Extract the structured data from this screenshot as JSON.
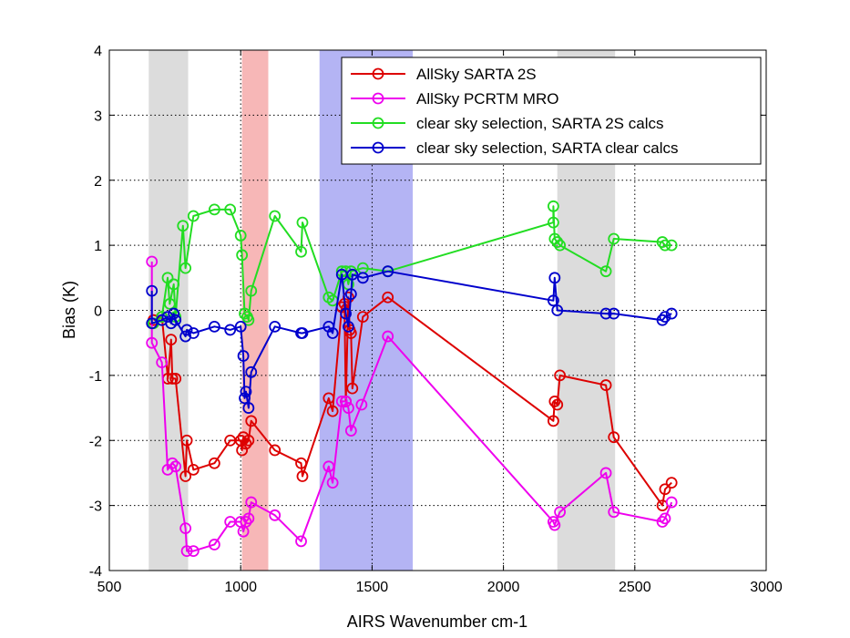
{
  "chart_data": {
    "type": "line",
    "title": "",
    "xlabel": "AIRS Wavenumber cm-1",
    "ylabel": "Bias (K)",
    "xlim": [
      500,
      3000
    ],
    "ylim": [
      -4,
      4
    ],
    "xticks": [
      500,
      1000,
      1500,
      2000,
      2500,
      3000
    ],
    "yticks": [
      -4,
      -3,
      -2,
      -1,
      0,
      1,
      2,
      3,
      4
    ],
    "grid": true,
    "grid_style": "dotted",
    "legend_position": "top-right",
    "bands": [
      {
        "x0": 650,
        "x1": 800,
        "color": "#dcdcdc"
      },
      {
        "x0": 1005,
        "x1": 1105,
        "color": "#f7b7b7"
      },
      {
        "x0": 1300,
        "x1": 1655,
        "color": "#b4b4f4"
      },
      {
        "x0": 2205,
        "x1": 2425,
        "color": "#dcdcdc"
      }
    ],
    "series": [
      {
        "name": "AllSky SARTA 2S",
        "color": "#dd0000",
        "points": [
          [
            668,
            -0.15
          ],
          [
            700,
            -0.1
          ],
          [
            723,
            -1.05
          ],
          [
            735,
            -0.45
          ],
          [
            740,
            -1.05
          ],
          [
            752,
            -1.05
          ],
          [
            790,
            -2.55
          ],
          [
            795,
            -2.0
          ],
          [
            820,
            -2.45
          ],
          [
            900,
            -2.35
          ],
          [
            960,
            -2.0
          ],
          [
            1000,
            -2.0
          ],
          [
            1005,
            -2.15
          ],
          [
            1010,
            -1.95
          ],
          [
            1020,
            -2.05
          ],
          [
            1030,
            -2.0
          ],
          [
            1040,
            -1.7
          ],
          [
            1130,
            -2.15
          ],
          [
            1230,
            -2.35
          ],
          [
            1235,
            -2.55
          ],
          [
            1335,
            -1.35
          ],
          [
            1350,
            -1.55
          ],
          [
            1385,
            0.05
          ],
          [
            1395,
            0.1
          ],
          [
            1400,
            -1.4
          ],
          [
            1410,
            0.2
          ],
          [
            1415,
            -0.3
          ],
          [
            1420,
            -0.35
          ],
          [
            1425,
            -1.2
          ],
          [
            1465,
            -0.1
          ],
          [
            1560,
            0.2
          ],
          [
            2190,
            -1.7
          ],
          [
            2195,
            -1.4
          ],
          [
            2205,
            -1.45
          ],
          [
            2215,
            -1.0
          ],
          [
            2390,
            -1.15
          ],
          [
            2420,
            -1.95
          ],
          [
            2605,
            -3.0
          ],
          [
            2615,
            -2.75
          ],
          [
            2640,
            -2.65
          ]
        ]
      },
      {
        "name": "AllSky PCRTM MRO",
        "color": "#ee00ee",
        "points": [
          [
            662,
            0.75
          ],
          [
            662,
            -0.5
          ],
          [
            700,
            -0.8
          ],
          [
            722,
            -2.45
          ],
          [
            740,
            -2.35
          ],
          [
            752,
            -2.4
          ],
          [
            790,
            -3.35
          ],
          [
            795,
            -3.7
          ],
          [
            820,
            -3.7
          ],
          [
            900,
            -3.6
          ],
          [
            960,
            -3.25
          ],
          [
            1000,
            -3.25
          ],
          [
            1010,
            -3.4
          ],
          [
            1020,
            -3.25
          ],
          [
            1030,
            -3.2
          ],
          [
            1040,
            -2.95
          ],
          [
            1130,
            -3.15
          ],
          [
            1230,
            -3.55
          ],
          [
            1335,
            -2.4
          ],
          [
            1350,
            -2.65
          ],
          [
            1385,
            -1.4
          ],
          [
            1400,
            -1.4
          ],
          [
            1410,
            -1.5
          ],
          [
            1420,
            -1.85
          ],
          [
            1460,
            -1.45
          ],
          [
            1560,
            -0.4
          ],
          [
            2190,
            -3.25
          ],
          [
            2195,
            -3.3
          ],
          [
            2215,
            -3.1
          ],
          [
            2390,
            -2.5
          ],
          [
            2420,
            -3.1
          ],
          [
            2605,
            -3.25
          ],
          [
            2615,
            -3.2
          ],
          [
            2640,
            -2.95
          ]
        ]
      },
      {
        "name": "clear sky selection, SARTA 2S calcs",
        "color": "#22dd22",
        "points": [
          [
            668,
            -0.2
          ],
          [
            700,
            -0.1
          ],
          [
            722,
            0.5
          ],
          [
            730,
            0.1
          ],
          [
            745,
            0.4
          ],
          [
            752,
            -0.1
          ],
          [
            780,
            1.3
          ],
          [
            790,
            0.65
          ],
          [
            820,
            1.45
          ],
          [
            900,
            1.55
          ],
          [
            960,
            1.55
          ],
          [
            1000,
            1.15
          ],
          [
            1005,
            0.85
          ],
          [
            1015,
            -0.05
          ],
          [
            1025,
            -0.1
          ],
          [
            1030,
            -0.15
          ],
          [
            1040,
            0.3
          ],
          [
            1130,
            1.45
          ],
          [
            1230,
            0.9
          ],
          [
            1235,
            1.35
          ],
          [
            1335,
            0.2
          ],
          [
            1350,
            0.15
          ],
          [
            1385,
            0.6
          ],
          [
            1400,
            0.6
          ],
          [
            1410,
            0.4
          ],
          [
            1420,
            0.6
          ],
          [
            1465,
            0.65
          ],
          [
            1560,
            0.6
          ],
          [
            2190,
            1.35
          ],
          [
            2190,
            1.6
          ],
          [
            2195,
            1.1
          ],
          [
            2205,
            1.05
          ],
          [
            2215,
            1.0
          ],
          [
            2390,
            0.6
          ],
          [
            2420,
            1.1
          ],
          [
            2605,
            1.05
          ],
          [
            2615,
            1.0
          ],
          [
            2640,
            1.0
          ]
        ]
      },
      {
        "name": "clear sky selection, SARTA clear calcs",
        "color": "#0000cc",
        "points": [
          [
            662,
            0.3
          ],
          [
            662,
            -0.2
          ],
          [
            700,
            -0.15
          ],
          [
            722,
            -0.1
          ],
          [
            735,
            -0.2
          ],
          [
            745,
            -0.05
          ],
          [
            752,
            -0.15
          ],
          [
            790,
            -0.4
          ],
          [
            795,
            -0.3
          ],
          [
            820,
            -0.35
          ],
          [
            900,
            -0.25
          ],
          [
            960,
            -0.3
          ],
          [
            1000,
            -0.25
          ],
          [
            1010,
            -0.7
          ],
          [
            1015,
            -1.35
          ],
          [
            1020,
            -1.25
          ],
          [
            1030,
            -1.5
          ],
          [
            1040,
            -0.95
          ],
          [
            1130,
            -0.25
          ],
          [
            1230,
            -0.35
          ],
          [
            1235,
            -0.35
          ],
          [
            1335,
            -0.25
          ],
          [
            1350,
            -0.35
          ],
          [
            1385,
            0.55
          ],
          [
            1400,
            -0.05
          ],
          [
            1410,
            -0.25
          ],
          [
            1420,
            0.25
          ],
          [
            1425,
            0.55
          ],
          [
            1465,
            0.5
          ],
          [
            1560,
            0.6
          ],
          [
            2190,
            0.15
          ],
          [
            2195,
            0.5
          ],
          [
            2205,
            0.0
          ],
          [
            2390,
            -0.05
          ],
          [
            2420,
            -0.05
          ],
          [
            2605,
            -0.15
          ],
          [
            2615,
            -0.1
          ],
          [
            2640,
            -0.05
          ]
        ]
      }
    ]
  }
}
